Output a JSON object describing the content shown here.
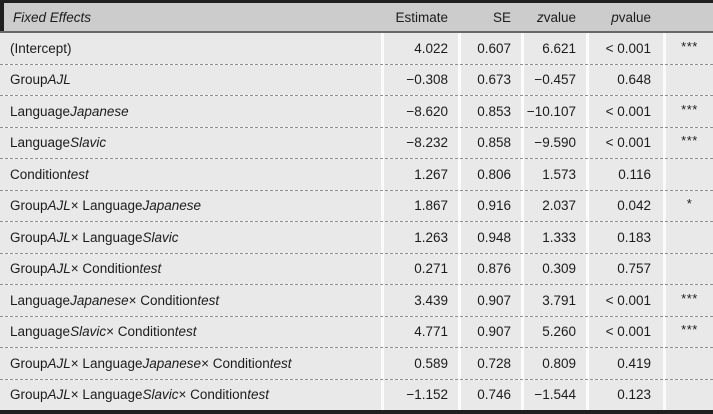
{
  "table": {
    "colors": {
      "header_bg": "#cccccc",
      "row_bg": "#e9e9e9",
      "gutter": "#fbfbfb",
      "border_dark": "#1f1f1f",
      "header_rule": "#686868",
      "dash": "#8f8f8f",
      "text": "#1c1c1c"
    },
    "header": {
      "label": [
        {
          "t": "Fixed Effects",
          "i": true
        }
      ],
      "estimate": [
        {
          "t": "Estimate",
          "i": false
        }
      ],
      "se": [
        {
          "t": "SE",
          "i": false
        }
      ],
      "z": [
        {
          "t": "z",
          "i": true
        },
        {
          "t": " value",
          "i": false
        }
      ],
      "p": [
        {
          "t": "p",
          "i": true
        },
        {
          "t": " value",
          "i": false
        }
      ],
      "sig": []
    },
    "rows": [
      {
        "label": [
          {
            "t": "(Intercept)",
            "i": false
          }
        ],
        "estimate": "4.022",
        "se": "0.607",
        "z": "6.621",
        "p": "< 0.001",
        "sig": "***"
      },
      {
        "label": [
          {
            "t": "Group ",
            "i": false
          },
          {
            "t": "AJL",
            "i": true
          }
        ],
        "estimate": "−0.308",
        "se": "0.673",
        "z": "−0.457",
        "p": "0.648",
        "sig": ""
      },
      {
        "label": [
          {
            "t": "Language ",
            "i": false
          },
          {
            "t": "Japanese",
            "i": true
          }
        ],
        "estimate": "−8.620",
        "se": "0.853",
        "z": "−10.107",
        "p": "< 0.001",
        "sig": "***"
      },
      {
        "label": [
          {
            "t": "Language ",
            "i": false
          },
          {
            "t": "Slavic",
            "i": true
          }
        ],
        "estimate": "−8.232",
        "se": "0.858",
        "z": "−9.590",
        "p": "< 0.001",
        "sig": "***"
      },
      {
        "label": [
          {
            "t": "Condition ",
            "i": false
          },
          {
            "t": "test",
            "i": true
          }
        ],
        "estimate": "1.267",
        "se": "0.806",
        "z": "1.573",
        "p": "0.116",
        "sig": ""
      },
      {
        "label": [
          {
            "t": "Group ",
            "i": false
          },
          {
            "t": "AJL",
            "i": true
          },
          {
            "t": " × Language ",
            "i": false
          },
          {
            "t": "Japanese",
            "i": true
          }
        ],
        "estimate": "1.867",
        "se": "0.916",
        "z": "2.037",
        "p": "0.042",
        "sig": "*"
      },
      {
        "label": [
          {
            "t": "Group ",
            "i": false
          },
          {
            "t": "AJL",
            "i": true
          },
          {
            "t": " × Language ",
            "i": false
          },
          {
            "t": "Slavic",
            "i": true
          }
        ],
        "estimate": "1.263",
        "se": "0.948",
        "z": "1.333",
        "p": "0.183",
        "sig": ""
      },
      {
        "label": [
          {
            "t": "Group ",
            "i": false
          },
          {
            "t": "AJL",
            "i": true
          },
          {
            "t": " × Condition ",
            "i": false
          },
          {
            "t": "test",
            "i": true
          }
        ],
        "estimate": "0.271",
        "se": "0.876",
        "z": "0.309",
        "p": "0.757",
        "sig": ""
      },
      {
        "label": [
          {
            "t": "Language ",
            "i": false
          },
          {
            "t": "Japanese",
            "i": true
          },
          {
            "t": " × Condition ",
            "i": false
          },
          {
            "t": "test",
            "i": true
          }
        ],
        "estimate": "3.439",
        "se": "0.907",
        "z": "3.791",
        "p": "< 0.001",
        "sig": "***"
      },
      {
        "label": [
          {
            "t": "Language ",
            "i": false
          },
          {
            "t": "Slavic",
            "i": true
          },
          {
            "t": " × Condition ",
            "i": false
          },
          {
            "t": "test",
            "i": true
          }
        ],
        "estimate": "4.771",
        "se": "0.907",
        "z": "5.260",
        "p": "< 0.001",
        "sig": "***"
      },
      {
        "label": [
          {
            "t": "Group ",
            "i": false
          },
          {
            "t": "AJL",
            "i": true
          },
          {
            "t": " × Language ",
            "i": false
          },
          {
            "t": "Japanese",
            "i": true
          },
          {
            "t": " × Condition ",
            "i": false
          },
          {
            "t": "test",
            "i": true
          }
        ],
        "estimate": "0.589",
        "se": "0.728",
        "z": "0.809",
        "p": "0.419",
        "sig": ""
      },
      {
        "label": [
          {
            "t": "Group ",
            "i": false
          },
          {
            "t": "AJL",
            "i": true
          },
          {
            "t": " × Language ",
            "i": false
          },
          {
            "t": "Slavic",
            "i": true
          },
          {
            "t": " × Condition ",
            "i": false
          },
          {
            "t": "test",
            "i": true
          }
        ],
        "estimate": "−1.152",
        "se": "0.746",
        "z": "−1.544",
        "p": "0.123",
        "sig": ""
      }
    ]
  }
}
